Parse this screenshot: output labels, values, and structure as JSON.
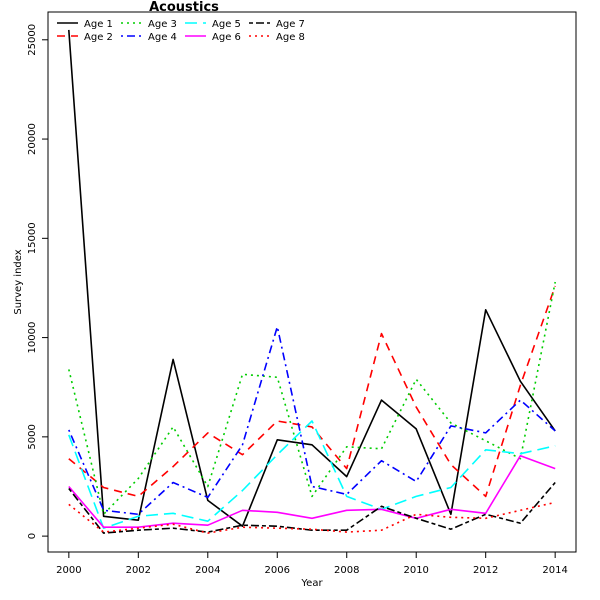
{
  "chart_data": {
    "type": "line",
    "title": "Acoustics",
    "xlabel": "Year",
    "ylabel": "Survey index",
    "xlim": [
      1999.4,
      2014.6
    ],
    "ylim": [
      -800,
      26400
    ],
    "x_ticks": [
      2000,
      2002,
      2004,
      2006,
      2008,
      2010,
      2012,
      2014
    ],
    "y_ticks": [
      0,
      5000,
      10000,
      15000,
      20000,
      25000
    ],
    "legend_position": "top-left",
    "x": [
      2000,
      2001,
      2002,
      2003,
      2004,
      2005,
      2006,
      2007,
      2008,
      2009,
      2010,
      2011,
      2012,
      2013,
      2014
    ],
    "series": [
      {
        "name": "Age 1",
        "color": "#000000",
        "dash": "solid",
        "values": [
          25500,
          1000,
          800,
          8900,
          1800,
          500,
          4850,
          4600,
          3000,
          6850,
          5400,
          1100,
          11400,
          7800,
          5300
        ]
      },
      {
        "name": "Age 2",
        "color": "#ff0000",
        "dash": "dash",
        "values": [
          3900,
          2450,
          2000,
          3500,
          5200,
          4100,
          5800,
          5500,
          3400,
          10200,
          6500,
          3600,
          2000,
          7600,
          12600
        ]
      },
      {
        "name": "Age 3",
        "color": "#00cd00",
        "dash": "dot",
        "values": [
          8400,
          1100,
          2900,
          5500,
          2500,
          8150,
          8000,
          2000,
          4500,
          4400,
          7900,
          5700,
          4800,
          3900,
          12800
        ]
      },
      {
        "name": "Age 4",
        "color": "#0000ff",
        "dash": "dotdash",
        "values": [
          5350,
          1300,
          1100,
          2700,
          1950,
          4600,
          10550,
          2500,
          2100,
          3800,
          2750,
          5550,
          5200,
          6850,
          5300
        ]
      },
      {
        "name": "Age 5",
        "color": "#00ffff",
        "dash": "longdash",
        "values": [
          5100,
          400,
          1000,
          1150,
          750,
          2300,
          4100,
          5800,
          2000,
          1350,
          2000,
          2450,
          4350,
          4150,
          4550
        ]
      },
      {
        "name": "Age 6",
        "color": "#ff00ff",
        "dash": "solid",
        "values": [
          2500,
          450,
          450,
          650,
          550,
          1300,
          1200,
          900,
          1300,
          1350,
          900,
          1350,
          1150,
          4050,
          3400
        ]
      },
      {
        "name": "Age 7",
        "color": "#000000",
        "dash": "twodash",
        "values": [
          2400,
          150,
          300,
          400,
          200,
          550,
          500,
          300,
          300,
          1500,
          900,
          350,
          1100,
          650,
          2700
        ]
      },
      {
        "name": "Age 8",
        "color": "#ff0000",
        "dash": "dot",
        "values": [
          1600,
          200,
          400,
          600,
          150,
          450,
          400,
          350,
          200,
          300,
          1100,
          950,
          900,
          1300,
          1700
        ]
      }
    ]
  }
}
